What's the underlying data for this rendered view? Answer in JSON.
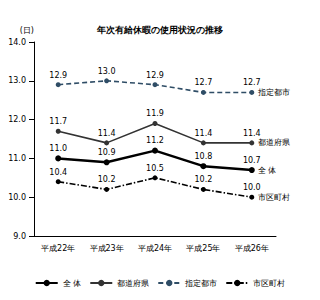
{
  "chart_data": {
    "type": "line",
    "title": "年次有給休暇の使用状況の推移",
    "y_label": "(日)",
    "categories": [
      "平成22年",
      "平成23年",
      "平成24年",
      "平成25年",
      "平成26年"
    ],
    "series": [
      {
        "name": "全 体",
        "color": "#000000",
        "line_style": "solid",
        "marker": "circle",
        "values": [
          11.0,
          10.9,
          11.2,
          10.8,
          10.7
        ],
        "value_labels": [
          "11.0",
          "10.9",
          "11.2",
          "10.8",
          "10.7"
        ]
      },
      {
        "name": "都道府県",
        "color": "#333333",
        "line_style": "solid",
        "marker": "circle",
        "values": [
          11.7,
          11.4,
          11.9,
          11.4,
          11.4
        ],
        "value_labels": [
          "11.7",
          "11.4",
          "11.9",
          "11.4",
          "11.4"
        ]
      },
      {
        "name": "指定都市",
        "color": "#2f4d66",
        "line_style": "dashed",
        "marker": "circle",
        "values": [
          12.9,
          13.0,
          12.9,
          12.7,
          12.7
        ],
        "value_labels": [
          "12.9",
          "13.0",
          "12.9",
          "12.7",
          "12.7"
        ]
      },
      {
        "name": "市区町村",
        "color": "#000000",
        "line_style": "dashdot",
        "marker": "circle",
        "values": [
          10.4,
          10.2,
          10.5,
          10.2,
          10.0
        ],
        "value_labels": [
          "10.4",
          "10.2",
          "10.5",
          "10.2",
          "10.0"
        ]
      }
    ],
    "ylim": [
      9,
      14
    ],
    "yticks": [
      {
        "value": 9,
        "label": "9.0"
      },
      {
        "value": 10,
        "label": "10.0"
      },
      {
        "value": 11,
        "label": "11.0"
      },
      {
        "value": 12,
        "label": "12.0"
      },
      {
        "value": 13,
        "label": "13.0"
      },
      {
        "value": 14,
        "label": "14.0"
      }
    ],
    "grid": false,
    "legend": "bottom",
    "data_labels": true
  }
}
